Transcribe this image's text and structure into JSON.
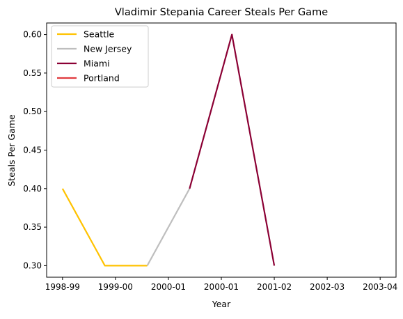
{
  "chart_data": {
    "type": "line",
    "title": "Vladimir Stepania Career Steals Per Game",
    "xlabel": "Year",
    "ylabel": "Steals Per Game",
    "x_ticks": [
      "1998-99",
      "1999-00",
      "2000-01",
      "2000-01",
      "2001-02",
      "2002-03",
      "2003-04"
    ],
    "x_tick_positions": [
      0,
      1,
      2,
      3,
      4,
      5,
      6
    ],
    "xlim": [
      -0.3,
      6.3
    ],
    "ylim": [
      0.285,
      0.615
    ],
    "y_ticks": [
      0.3,
      0.35,
      0.4,
      0.45,
      0.5,
      0.55,
      0.6
    ],
    "y_tick_labels": [
      "0.30",
      "0.35",
      "0.40",
      "0.45",
      "0.50",
      "0.55",
      "0.60"
    ],
    "grid": false,
    "legend_position": "top-left",
    "series": [
      {
        "name": "Seattle",
        "color": "#FFC200",
        "points": [
          [
            0,
            0.4
          ],
          [
            0.8,
            0.3
          ],
          [
            1.6,
            0.3
          ]
        ]
      },
      {
        "name": "New Jersey",
        "color": "#BEBEBE",
        "points": [
          [
            1.6,
            0.3
          ],
          [
            2.4,
            0.4
          ]
        ]
      },
      {
        "name": "Miami",
        "color": "#8B0034",
        "points": [
          [
            2.4,
            0.4
          ],
          [
            3.2,
            0.6
          ],
          [
            4.0,
            0.3
          ]
        ]
      },
      {
        "name": "Portland",
        "color": "#E03A3E",
        "points": []
      }
    ]
  }
}
